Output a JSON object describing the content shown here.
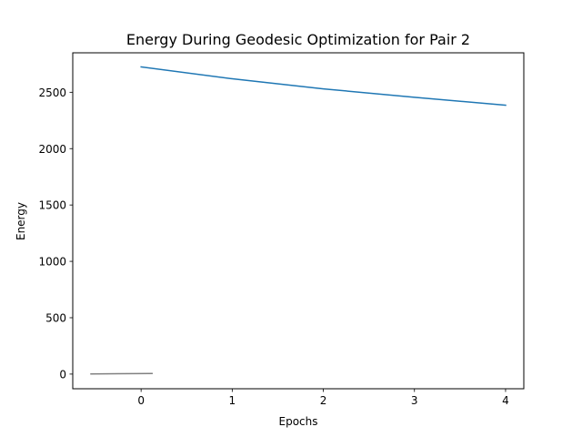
{
  "chart_data": {
    "type": "line",
    "title": "Energy During Geodesic Optimization for Pair 2",
    "xlabel": "Epochs",
    "ylabel": "Energy",
    "xlim": [
      -0.75,
      4.2
    ],
    "ylim": [
      -130,
      2850
    ],
    "xticks": [
      0,
      1,
      2,
      3,
      4
    ],
    "xtick_labels": [
      "0",
      "1",
      "2",
      "3",
      "4"
    ],
    "yticks": [
      0,
      500,
      1000,
      1500,
      2000,
      2500
    ],
    "ytick_labels": [
      "0",
      "500",
      "1000",
      "1500",
      "2000",
      "2500"
    ],
    "grid": false,
    "series": [
      {
        "color": "#1f77b4",
        "x": [
          0,
          1,
          2,
          3,
          4
        ],
        "y": [
          2725,
          2620,
          2530,
          2455,
          2385
        ]
      },
      {
        "color": "#808080",
        "x": [
          -0.55,
          0.12
        ],
        "y": [
          2,
          5
        ]
      }
    ]
  }
}
